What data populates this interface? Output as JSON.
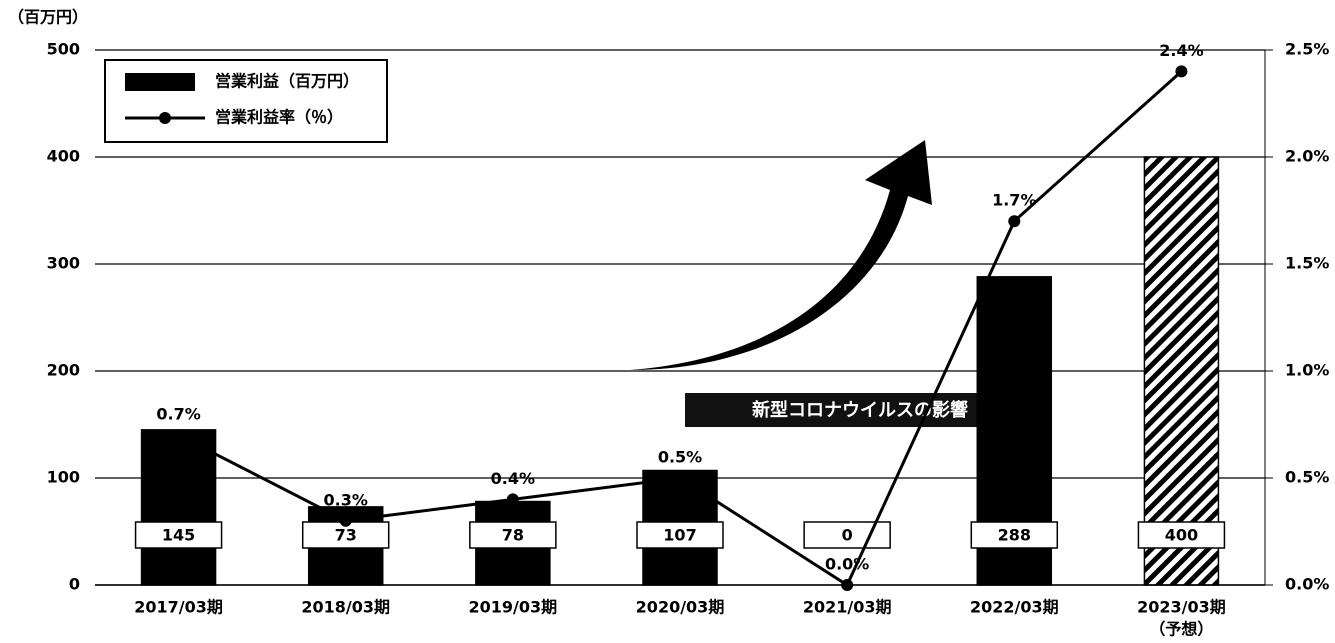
{
  "chart_data": {
    "type": "bar",
    "y_unit": "（百万円）",
    "categories": [
      "2017/03期",
      "2018/03期",
      "2019/03期",
      "2020/03期",
      "2021/03期",
      "2022/03期",
      "2023/03期"
    ],
    "forecast_label": "（予想）",
    "series": [
      {
        "name": "営業利益（百万円）",
        "type": "bar",
        "color": "#000000",
        "values": [
          145,
          73,
          78,
          107,
          0,
          288,
          400
        ],
        "hatched": [
          false,
          false,
          false,
          false,
          false,
          false,
          true
        ]
      },
      {
        "name": "営業利益率（％）",
        "type": "line",
        "axis": "y2",
        "color": "#000000",
        "values": [
          0.7,
          0.3,
          0.4,
          0.5,
          0.0,
          1.7,
          2.4
        ],
        "value_labels": [
          "0.7%",
          "0.3%",
          "0.4%",
          "0.5%",
          "0.0%",
          "1.7%",
          "2.4%"
        ]
      }
    ],
    "ylim": [
      0,
      500
    ],
    "yticks": [
      0,
      100,
      200,
      300,
      400,
      500
    ],
    "y2lim": [
      0,
      2.5
    ],
    "y2ticks": [
      {
        "value": 0,
        "label": "0.0%"
      },
      {
        "value": 0.5,
        "label": "0.5%"
      },
      {
        "value": 1,
        "label": "1.0%"
      },
      {
        "value": 1.5,
        "label": "1.5%"
      },
      {
        "value": 2,
        "label": "2.0%"
      },
      {
        "value": 2.5,
        "label": "2.5%"
      }
    ],
    "grid": true,
    "legend": "top-left",
    "annotation": "新型コロナウイルスの影響"
  }
}
